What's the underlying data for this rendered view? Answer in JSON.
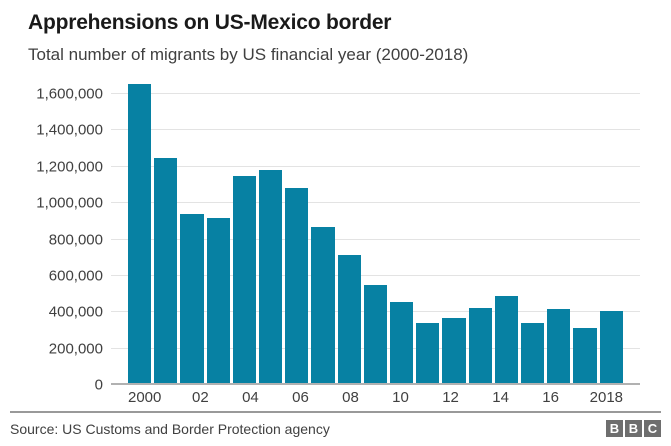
{
  "header": {
    "title": "Apprehensions on US-Mexico border",
    "subtitle": "Total number of migrants by US financial year (2000-2018)"
  },
  "footer": {
    "source": "Source: US Customs and Border Protection agency",
    "logo_letters": [
      "B",
      "B",
      "C"
    ]
  },
  "colors": {
    "bar": "#0781a3",
    "gridline": "#e3e3e3",
    "baseline": "#b1b1b1",
    "text_dark": "#1a1a1a",
    "text_gray": "#404040"
  },
  "chart_data": {
    "type": "bar",
    "title": "Apprehensions on US-Mexico border",
    "subtitle": "Total number of migrants by US financial year (2000-2018)",
    "categories": [
      "2000",
      "2001",
      "2002",
      "2003",
      "2004",
      "2005",
      "2006",
      "2007",
      "2008",
      "2009",
      "2010",
      "2011",
      "2012",
      "2013",
      "2014",
      "2015",
      "2016",
      "2017",
      "2018"
    ],
    "values": [
      1644000,
      1236000,
      930000,
      905000,
      1139000,
      1171000,
      1072000,
      859000,
      705000,
      541000,
      448000,
      328000,
      357000,
      414000,
      479000,
      331000,
      409000,
      304000,
      397000
    ],
    "x_tick_labels": [
      "2000",
      "",
      "02",
      "",
      "04",
      "",
      "06",
      "",
      "08",
      "",
      "10",
      "",
      "12",
      "",
      "14",
      "",
      "16",
      "",
      "2018"
    ],
    "y_ticks": [
      0,
      200000,
      400000,
      600000,
      800000,
      1000000,
      1200000,
      1400000,
      1600000
    ],
    "y_tick_labels": [
      "0",
      "200,000",
      "400,000",
      "600,000",
      "800,000",
      "1,000,000",
      "1,200,000",
      "1,400,000",
      "1,600,000"
    ],
    "xlabel": "",
    "ylabel": "",
    "ylim": [
      0,
      1600000
    ],
    "grid": "horizontal-only",
    "legend": "none",
    "bar_color": "#0781a3"
  }
}
